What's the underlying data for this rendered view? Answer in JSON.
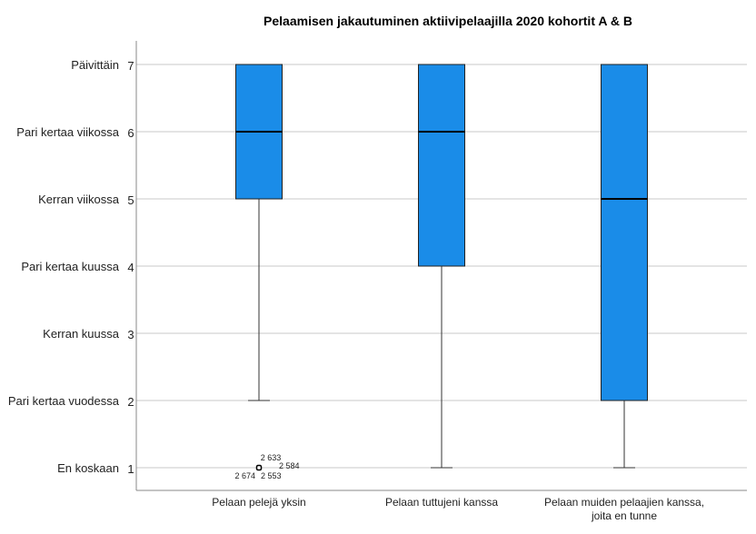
{
  "chart_data": {
    "type": "box",
    "title": "Pelaamisen jakautuminen aktiivipelaajilla 2020 kohortit A & B",
    "xlabel": "",
    "ylabel": "",
    "ylim": [
      0.65,
      7.35
    ],
    "grid": true,
    "y_ticks": [
      {
        "value": 1,
        "label": "En koskaan",
        "num": "1"
      },
      {
        "value": 2,
        "label": "Pari kertaa vuodessa",
        "num": "2"
      },
      {
        "value": 3,
        "label": "Kerran kuussa",
        "num": "3"
      },
      {
        "value": 4,
        "label": "Pari kertaa kuussa",
        "num": "4"
      },
      {
        "value": 5,
        "label": "Kerran viikossa",
        "num": "5"
      },
      {
        "value": 6,
        "label": "Pari kertaa viikossa",
        "num": "6"
      },
      {
        "value": 7,
        "label": "Päivittäin",
        "num": "7"
      }
    ],
    "box_color": "#1a8ce8",
    "series": [
      {
        "name": "Pelaan pelejä yksin",
        "name2": "",
        "whisker_low": 2,
        "q1": 5,
        "median": 6,
        "q3": 7,
        "whisker_high": 7,
        "outliers": [
          {
            "value": 1,
            "ids": [
              "2 633",
              "2 584",
              "2 674",
              "2 553"
            ]
          }
        ]
      },
      {
        "name": "Pelaan tuttujeni kanssa",
        "name2": "",
        "whisker_low": 1,
        "q1": 4,
        "median": 6,
        "q3": 7,
        "whisker_high": 7,
        "outliers": []
      },
      {
        "name": "Pelaan muiden pelaajien kanssa,",
        "name2": "joita en tunne",
        "whisker_low": 1,
        "q1": 2,
        "median": 5,
        "q3": 7,
        "whisker_high": 7,
        "outliers": []
      }
    ]
  }
}
